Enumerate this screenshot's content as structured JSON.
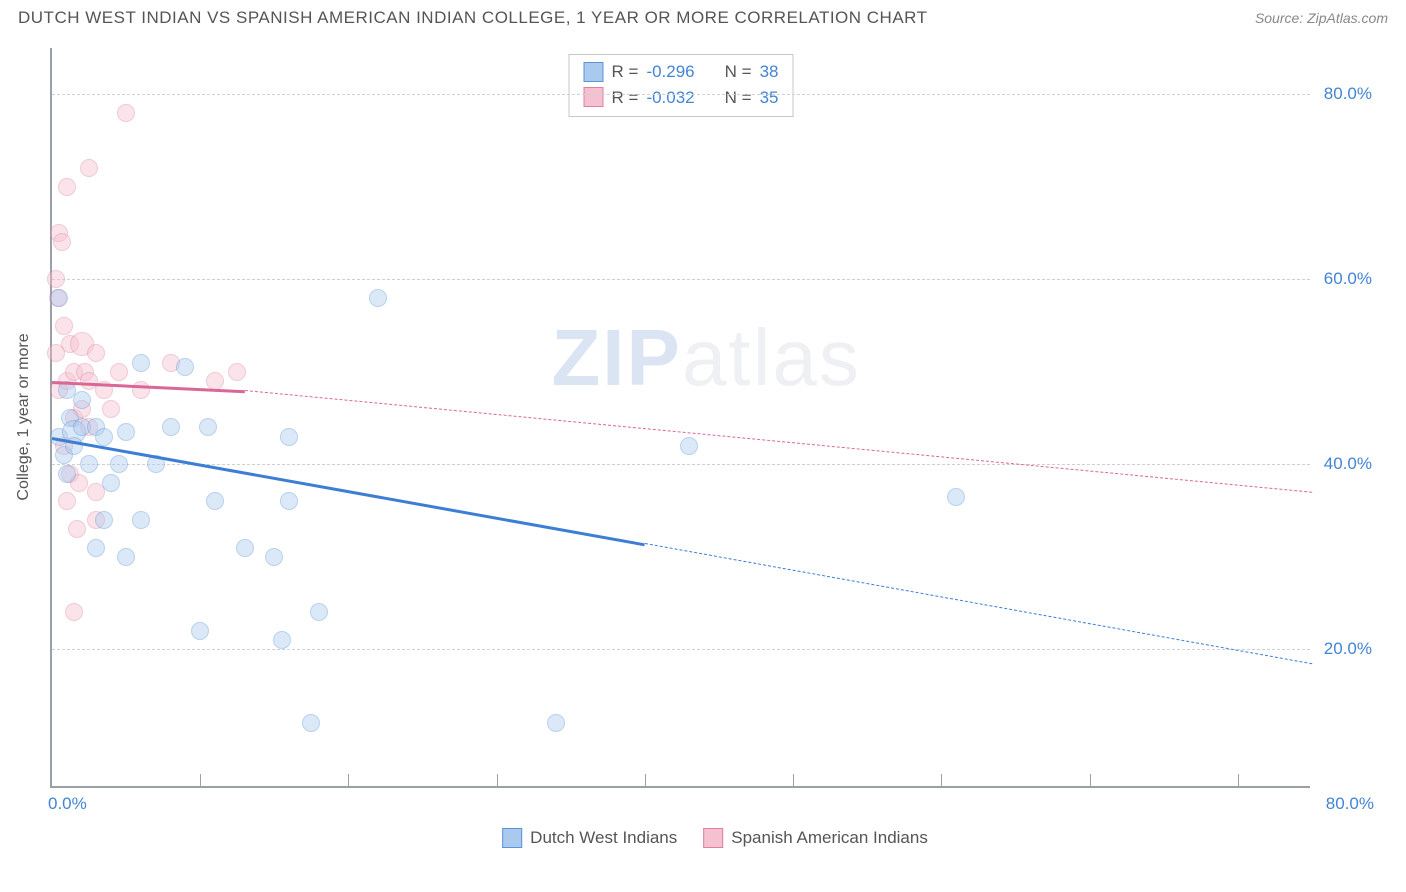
{
  "title": "DUTCH WEST INDIAN VS SPANISH AMERICAN INDIAN COLLEGE, 1 YEAR OR MORE CORRELATION CHART",
  "source": "Source: ZipAtlas.com",
  "watermark_zip": "ZIP",
  "watermark_atlas": "atlas",
  "chart": {
    "type": "scatter",
    "ylabel": "College, 1 year or more",
    "xlim": [
      0,
      85
    ],
    "ylim": [
      5,
      85
    ],
    "x_tick_min": "0.0%",
    "x_tick_max": "80.0%",
    "y_gridlines": [
      {
        "value": 20,
        "label": "20.0%"
      },
      {
        "value": 40,
        "label": "40.0%"
      },
      {
        "value": 60,
        "label": "60.0%"
      },
      {
        "value": 80,
        "label": "80.0%"
      }
    ],
    "x_gridlines": [
      10,
      20,
      30,
      40,
      50,
      60,
      70,
      80
    ],
    "background_color": "#ffffff",
    "grid_color": "#d0d0d0",
    "axis_color": "#9aa0a6",
    "label_fontsize": 16,
    "tick_fontsize": 17,
    "tick_color": "#4384d4",
    "point_radius": 9,
    "point_opacity": 0.42,
    "series": [
      {
        "name": "Dutch West Indians",
        "color_fill": "#a9c9ee",
        "color_stroke": "#5a93d6",
        "R": "-0.296",
        "N": "38",
        "trend": {
          "x0": 0,
          "y0": 43,
          "x1_solid": 40,
          "y1_solid": 31.5,
          "x1": 85,
          "y1": 18.5,
          "color": "#3d7ed4"
        },
        "points": [
          {
            "x": 0.5,
            "y": 58
          },
          {
            "x": 0.5,
            "y": 43
          },
          {
            "x": 0.8,
            "y": 41
          },
          {
            "x": 1.0,
            "y": 48
          },
          {
            "x": 1.0,
            "y": 39
          },
          {
            "x": 1.2,
            "y": 45
          },
          {
            "x": 1.5,
            "y": 43.5,
            "r": 12
          },
          {
            "x": 1.5,
            "y": 42
          },
          {
            "x": 2.0,
            "y": 44
          },
          {
            "x": 2.0,
            "y": 47
          },
          {
            "x": 2.5,
            "y": 40
          },
          {
            "x": 3.0,
            "y": 31
          },
          {
            "x": 3.0,
            "y": 44
          },
          {
            "x": 3.5,
            "y": 43
          },
          {
            "x": 3.5,
            "y": 34
          },
          {
            "x": 4.0,
            "y": 38
          },
          {
            "x": 4.5,
            "y": 40
          },
          {
            "x": 5.0,
            "y": 43.5
          },
          {
            "x": 5.0,
            "y": 30
          },
          {
            "x": 6.0,
            "y": 51
          },
          {
            "x": 6.0,
            "y": 34
          },
          {
            "x": 7.0,
            "y": 40
          },
          {
            "x": 8.0,
            "y": 44
          },
          {
            "x": 9.0,
            "y": 50.5
          },
          {
            "x": 10.0,
            "y": 22
          },
          {
            "x": 10.5,
            "y": 44
          },
          {
            "x": 11.0,
            "y": 36
          },
          {
            "x": 13.0,
            "y": 31
          },
          {
            "x": 15.0,
            "y": 30
          },
          {
            "x": 15.5,
            "y": 21
          },
          {
            "x": 16.0,
            "y": 36
          },
          {
            "x": 16.0,
            "y": 43
          },
          {
            "x": 17.5,
            "y": 12
          },
          {
            "x": 18.0,
            "y": 24
          },
          {
            "x": 22.0,
            "y": 58
          },
          {
            "x": 34.0,
            "y": 12
          },
          {
            "x": 43.0,
            "y": 42
          },
          {
            "x": 61.0,
            "y": 36.5
          }
        ]
      },
      {
        "name": "Spanish American Indians",
        "color_fill": "#f5c0cf",
        "color_stroke": "#e07fa0",
        "R": "-0.032",
        "N": "35",
        "trend": {
          "x0": 0,
          "y0": 49,
          "x1_solid": 13,
          "y1_solid": 48,
          "x1": 85,
          "y1": 37,
          "color": "#d96896"
        },
        "points": [
          {
            "x": 0.3,
            "y": 60
          },
          {
            "x": 0.3,
            "y": 52
          },
          {
            "x": 0.4,
            "y": 58
          },
          {
            "x": 0.5,
            "y": 48
          },
          {
            "x": 0.5,
            "y": 65
          },
          {
            "x": 0.7,
            "y": 64
          },
          {
            "x": 0.8,
            "y": 55
          },
          {
            "x": 0.8,
            "y": 42
          },
          {
            "x": 1.0,
            "y": 49
          },
          {
            "x": 1.0,
            "y": 70
          },
          {
            "x": 1.0,
            "y": 36
          },
          {
            "x": 1.2,
            "y": 53
          },
          {
            "x": 1.2,
            "y": 39
          },
          {
            "x": 1.5,
            "y": 24
          },
          {
            "x": 1.5,
            "y": 50
          },
          {
            "x": 1.5,
            "y": 45
          },
          {
            "x": 1.7,
            "y": 33
          },
          {
            "x": 1.8,
            "y": 38
          },
          {
            "x": 2.0,
            "y": 46
          },
          {
            "x": 2.0,
            "y": 53,
            "r": 12
          },
          {
            "x": 2.2,
            "y": 50
          },
          {
            "x": 2.5,
            "y": 49
          },
          {
            "x": 2.5,
            "y": 44
          },
          {
            "x": 2.5,
            "y": 72
          },
          {
            "x": 3.0,
            "y": 52
          },
          {
            "x": 3.0,
            "y": 34
          },
          {
            "x": 3.0,
            "y": 37
          },
          {
            "x": 3.5,
            "y": 48
          },
          {
            "x": 4.0,
            "y": 46
          },
          {
            "x": 4.5,
            "y": 50
          },
          {
            "x": 5.0,
            "y": 78
          },
          {
            "x": 6.0,
            "y": 48
          },
          {
            "x": 8.0,
            "y": 51
          },
          {
            "x": 11.0,
            "y": 49
          },
          {
            "x": 12.5,
            "y": 50
          }
        ]
      }
    ]
  },
  "legend_stat_label_R": "R  =",
  "legend_stat_label_N": "N  ="
}
